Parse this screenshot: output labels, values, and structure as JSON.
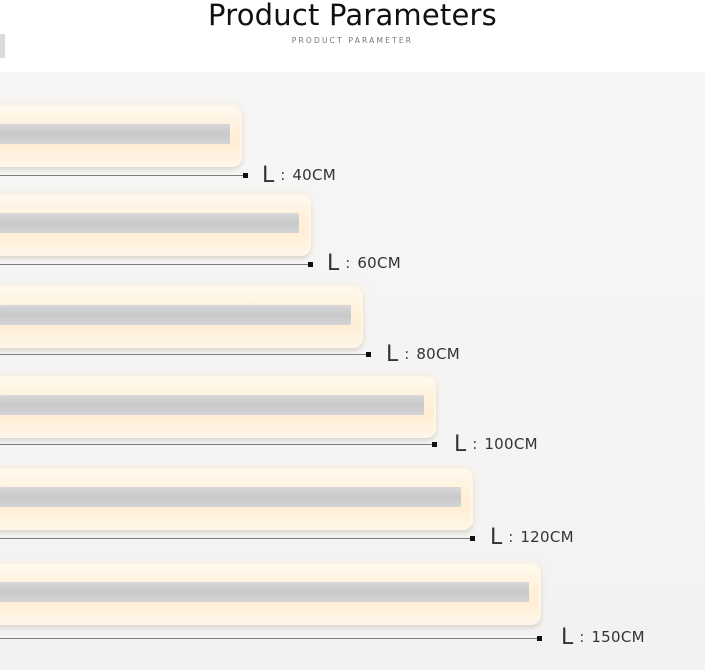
{
  "header": {
    "title": "Product Parameters",
    "subtitle": "PRODUCT PARAMETER"
  },
  "dimension_prefix": "L",
  "separator": ":",
  "sizes": [
    {
      "value": "40CM"
    },
    {
      "value": "60CM"
    },
    {
      "value": "80CM"
    },
    {
      "value": "100CM"
    },
    {
      "value": "120CM"
    },
    {
      "value": "150CM"
    }
  ]
}
